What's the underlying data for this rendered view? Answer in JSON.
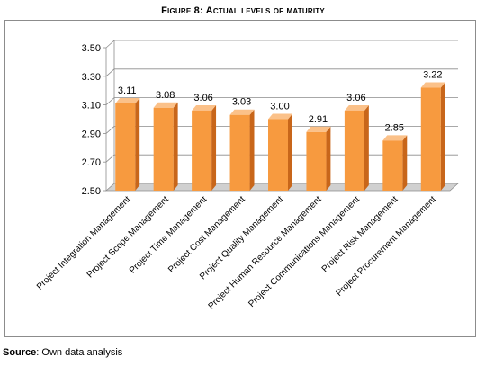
{
  "figure_title": "Figure 8: Actual levels of maturity",
  "source": {
    "label": "Source",
    "text": ": Own data analysis"
  },
  "colors": {
    "bar_front": "#f79a3f",
    "bar_side": "#c8661a",
    "bar_top": "#fbc189",
    "grid": "#8c8c8c",
    "floor": "#d0d0d0"
  },
  "chart_data": {
    "type": "bar",
    "categories": [
      "Project Integration Management",
      "Project Scope Management",
      "Project Time Management",
      "Project Cost Management",
      "Project Quality Management",
      "Project Human Resource Management",
      "Project Communications Management",
      "Project Risk Management",
      "Project Procurement Management"
    ],
    "values": [
      3.11,
      3.08,
      3.06,
      3.03,
      3.0,
      2.91,
      3.06,
      2.85,
      3.22
    ],
    "data_labels": [
      "3.11",
      "3.08",
      "3.06",
      "3.03",
      "3.00",
      "2.91",
      "3.06",
      "2.85",
      "3.22"
    ],
    "y_ticks": [
      "2.50",
      "2.70",
      "2.90",
      "3.10",
      "3.30",
      "3.50"
    ],
    "ylim": [
      2.5,
      3.5
    ],
    "grid": true,
    "legend": "none"
  }
}
